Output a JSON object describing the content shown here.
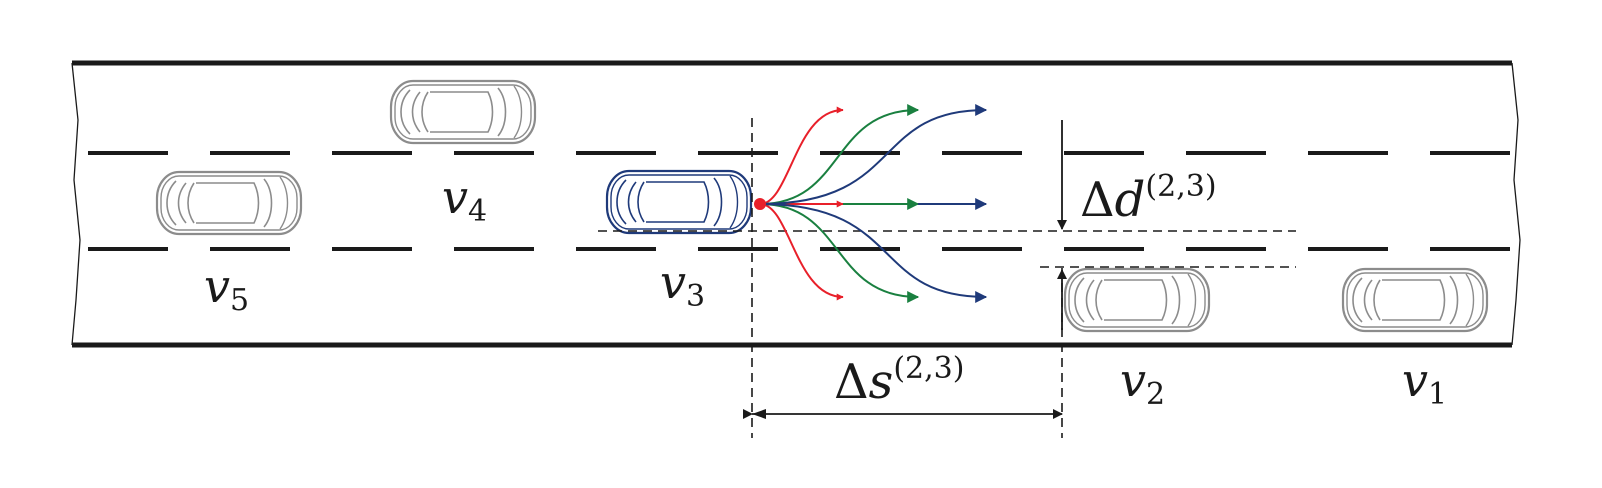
{
  "vehicles": [
    {
      "id": "v5",
      "var": "v",
      "sub": "5",
      "role": "other"
    },
    {
      "id": "v4",
      "var": "v",
      "sub": "4",
      "role": "other"
    },
    {
      "id": "v3",
      "var": "v",
      "sub": "3",
      "role": "ego"
    },
    {
      "id": "v2",
      "var": "v",
      "sub": "2",
      "role": "other"
    },
    {
      "id": "v1",
      "var": "v",
      "sub": "1",
      "role": "other"
    }
  ],
  "annotations": {
    "delta_d": {
      "symbol": "Δ",
      "var": "d",
      "sup": "(2,3)"
    },
    "delta_s": {
      "symbol": "Δ",
      "var": "s",
      "sup": "(2,3)"
    }
  },
  "colors": {
    "road_edge": "#1a1a1a",
    "lane_marking": "#1a1a1a",
    "other_vehicle": "#8c8c8c",
    "ego_vehicle": "#1f3a7a",
    "trajectory_short": "#e8202a",
    "trajectory_medium": "#1a8040",
    "trajectory_long": "#1f3a7a"
  }
}
